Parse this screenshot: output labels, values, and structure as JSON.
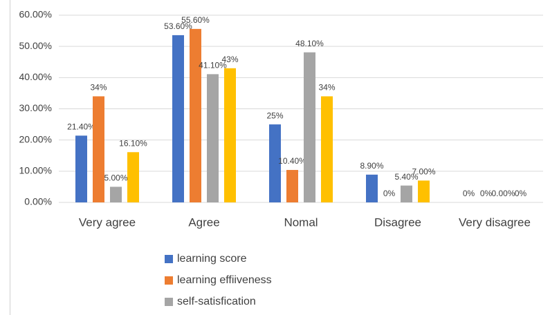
{
  "chart_data": {
    "type": "bar",
    "categories": [
      "Very agree",
      "Agree",
      "Nomal",
      "Disagree",
      "Very disagree"
    ],
    "series": [
      {
        "name": "learning score",
        "color": "#4472c4",
        "values": [
          21.4,
          53.6,
          25,
          8.9,
          0
        ],
        "value_labels": [
          "21.40%",
          "53.60%",
          "25%",
          "8.90%",
          "0%"
        ]
      },
      {
        "name": "learning effiiveness",
        "color": "#ed7d31",
        "values": [
          34,
          55.6,
          10.4,
          0,
          0
        ],
        "value_labels": [
          "34%",
          "55.60%",
          "10.40%",
          "0%",
          "0%"
        ]
      },
      {
        "name": "self-satisfication",
        "color": "#a5a5a5",
        "values": [
          5.0,
          41.1,
          48.1,
          5.4,
          0
        ],
        "value_labels": [
          "5.00%",
          "41.10%",
          "48.10%",
          "5.40%",
          "0.00%"
        ]
      },
      {
        "color": "#ffc000",
        "values": [
          16.1,
          43,
          34,
          7.0,
          0
        ],
        "value_labels": [
          "16.10%",
          "43%",
          "34%",
          "7.00%",
          "0%"
        ]
      }
    ],
    "ylim": [
      0,
      60
    ],
    "yticks": [
      {
        "value": 0,
        "label": "0.00%"
      },
      {
        "value": 10,
        "label": "10.00%"
      },
      {
        "value": 20,
        "label": "20.00%"
      },
      {
        "value": 30,
        "label": "30.00%"
      },
      {
        "value": 40,
        "label": "40.00%"
      },
      {
        "value": 50,
        "label": "50.00%"
      },
      {
        "value": 60,
        "label": "60.00%"
      }
    ],
    "grid": true
  }
}
